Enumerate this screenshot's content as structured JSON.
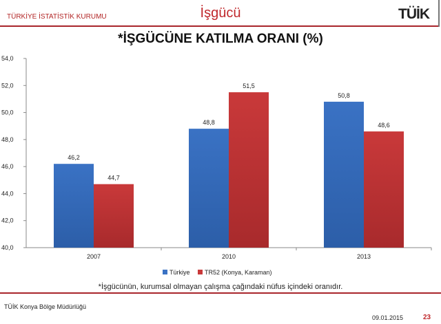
{
  "header": {
    "organization": "TÜRKİYE İSTATİSTİK KURUMU",
    "section": "İşgücü",
    "logo_text": "TÜİK"
  },
  "footer": {
    "office": "TÜİK Konya Bölge Müdürlüğü",
    "date": "09.01.2015",
    "page": "23"
  },
  "note": "*İşgücünün, kurumsal olmayan çalışma çağındaki nüfus içindeki oranıdır.",
  "chart_data": {
    "type": "bar",
    "title": "*İŞGÜCÜNE KATILMA ORANI (%)",
    "categories": [
      "2007",
      "2010",
      "2013"
    ],
    "series": [
      {
        "name": "Türkiye",
        "values": [
          46.2,
          48.8,
          50.8
        ],
        "labels": [
          "46,2",
          "48,8",
          "50,8"
        ],
        "color": "#3a72c4"
      },
      {
        "name": "TR52 (Konya, Karaman)",
        "values": [
          44.7,
          51.5,
          48.6
        ],
        "labels": [
          "44,7",
          "51,5",
          "48,6"
        ],
        "color": "#c9393a"
      }
    ],
    "ylim": [
      40,
      54
    ],
    "yticks": [
      "40,0",
      "42,0",
      "44,0",
      "46,0",
      "48,0",
      "50,0",
      "52,0",
      "54,0"
    ],
    "grid": false,
    "legend": "bottom"
  }
}
